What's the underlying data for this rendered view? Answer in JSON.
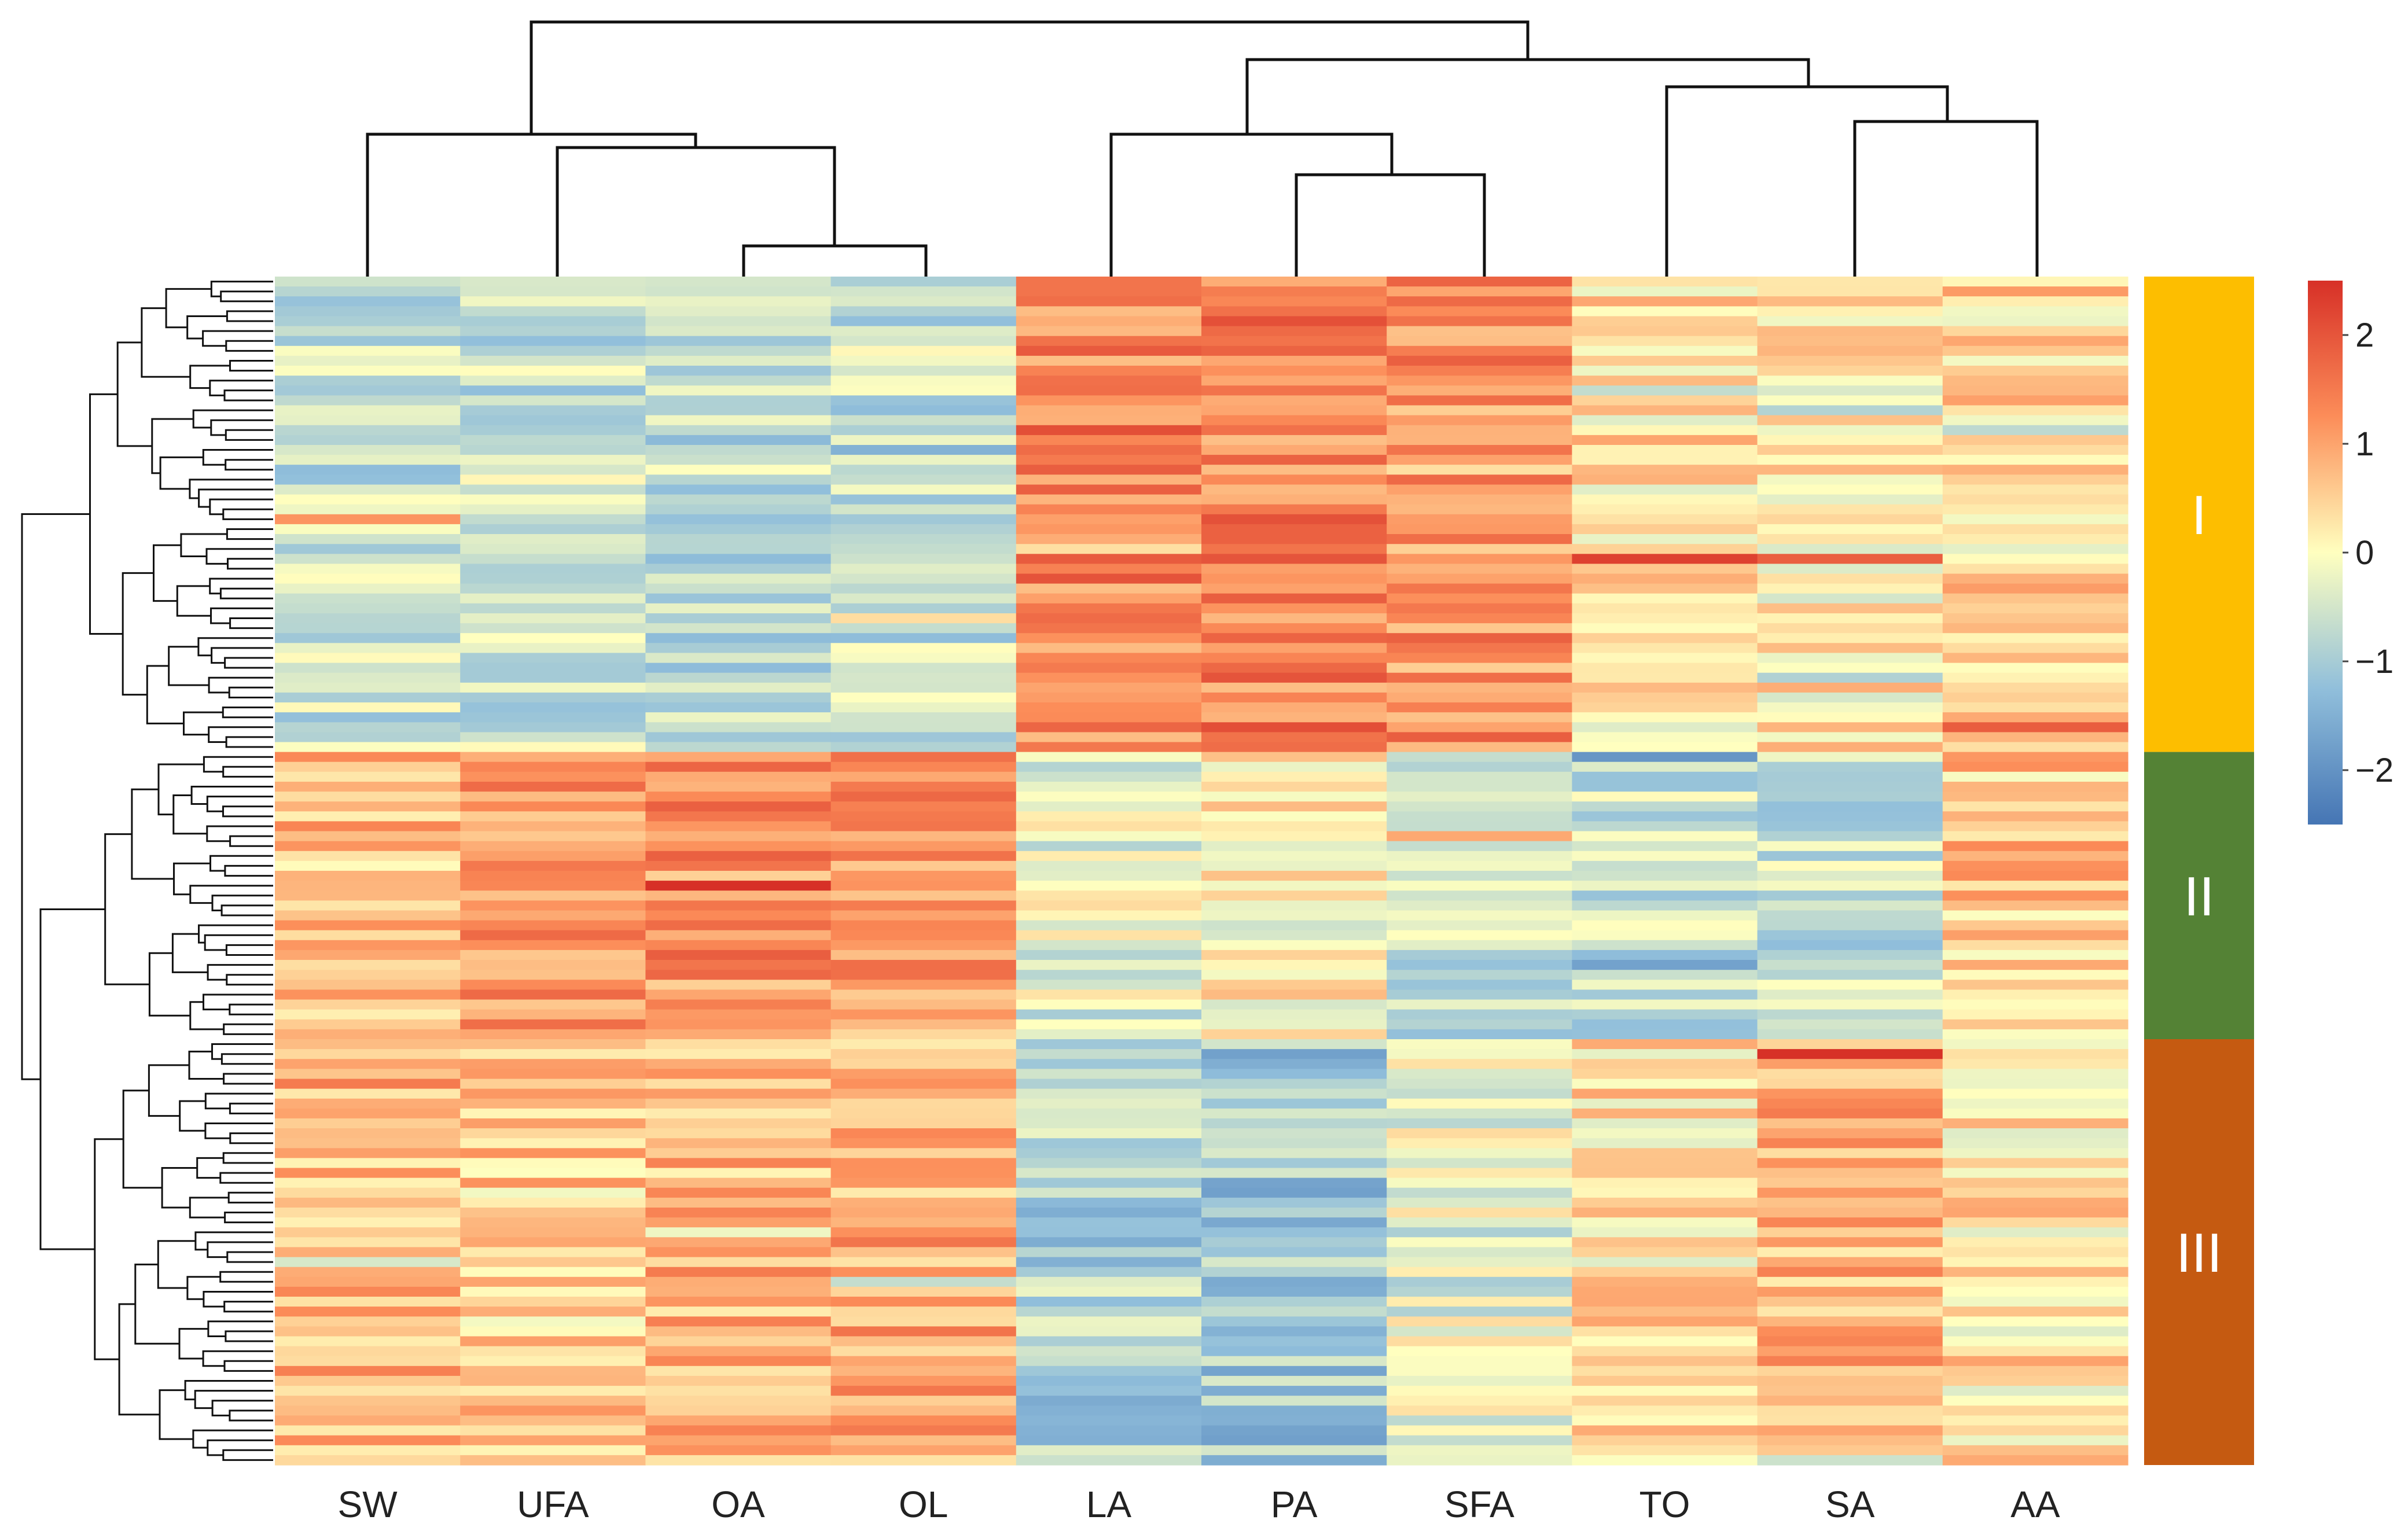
{
  "chart_data": {
    "type": "heatmap",
    "title": "",
    "columns": [
      "SW",
      "UFA",
      "OA",
      "OL",
      "LA",
      "PA",
      "SFA",
      "TO",
      "SA",
      "AA"
    ],
    "row_count": 120,
    "clusters": [
      {
        "label": "I",
        "rows": [
          0,
          48
        ],
        "color": "#FDBE00"
      },
      {
        "label": "II",
        "rows": [
          48,
          77
        ],
        "color": "#548235"
      },
      {
        "label": "III",
        "rows": [
          77,
          120
        ],
        "color": "#C55A11"
      }
    ],
    "color_scale": {
      "min": -2.5,
      "max": 2.5,
      "ticks": [
        2,
        1,
        0,
        -1,
        -2
      ],
      "tick_labels": [
        "2",
        "1",
        "0",
        "−1",
        "−2"
      ],
      "colors": [
        "#4575B4",
        "#91BFDB",
        "#FFFFBF",
        "#FC8D59",
        "#D73027"
      ]
    },
    "column_dendrogram": [
      {
        "a": [
          0
        ],
        "b": [
          1,
          2,
          3
        ]
      },
      {
        "a": [
          4
        ],
        "b": [
          5,
          6
        ]
      },
      {
        "a": [
          7
        ],
        "b": [
          8,
          9
        ]
      }
    ],
    "cluster_profiles": {
      "I": {
        "SW": -0.6,
        "UFA": -0.6,
        "OA": -0.7,
        "OL": -0.6,
        "LA": 1.4,
        "PA": 1.4,
        "SFA": 1.2,
        "TO": 0.3,
        "SA": 0.2,
        "AA": 0.4
      },
      "II": {
        "SW": 0.7,
        "UFA": 1.1,
        "OA": 1.2,
        "OL": 1.1,
        "LA": -0.3,
        "PA": 0.1,
        "SFA": -0.6,
        "TO": -0.6,
        "SA": -0.6,
        "AA": 0.6
      },
      "III": {
        "SW": 0.8,
        "UFA": 0.5,
        "OA": 0.8,
        "OL": 0.9,
        "LA": -0.9,
        "PA": -1.1,
        "SFA": -0.3,
        "TO": 0.3,
        "SA": 0.8,
        "AA": 0.3
      }
    }
  }
}
